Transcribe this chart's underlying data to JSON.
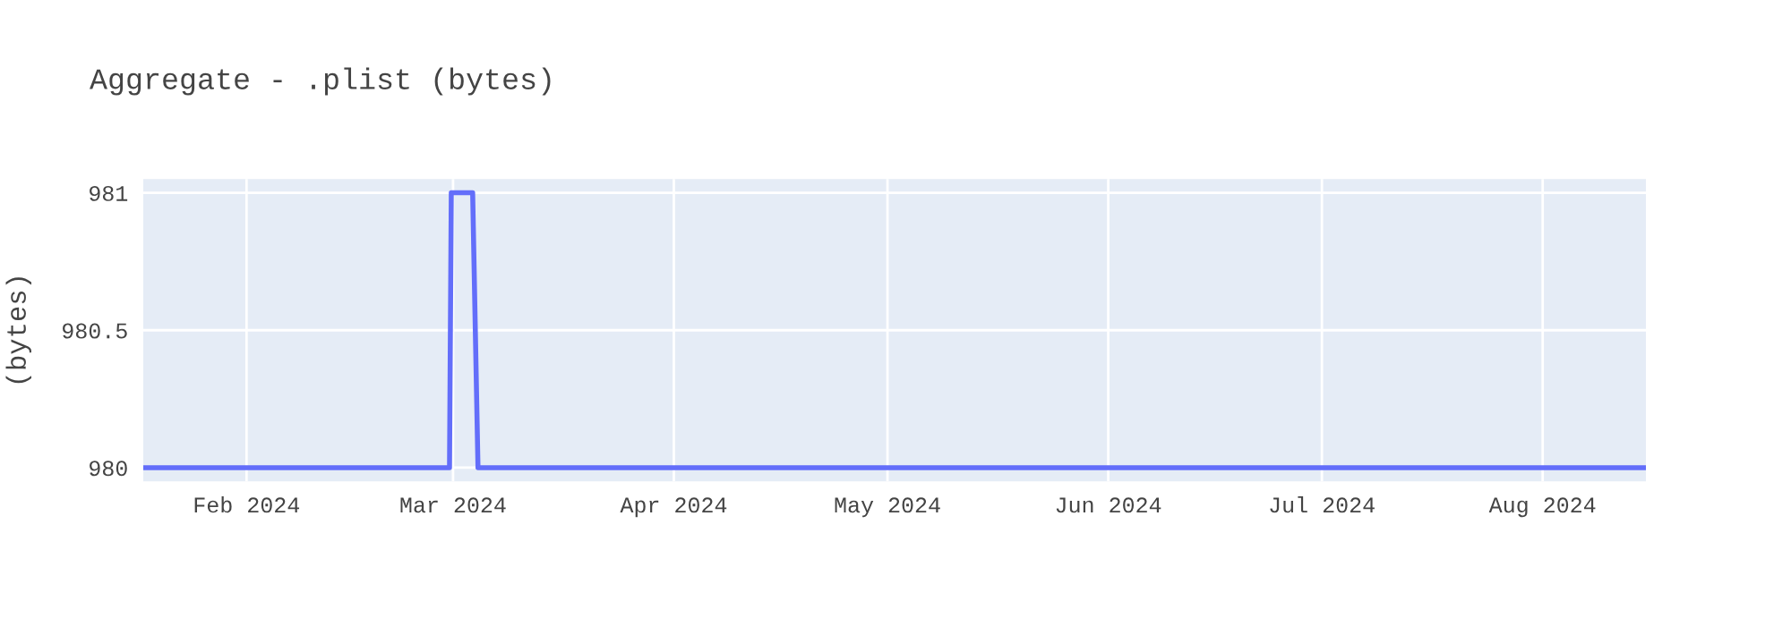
{
  "chart_data": {
    "type": "line",
    "title": "Aggregate - .plist (bytes)",
    "ylabel": "(bytes)",
    "x": [
      "2024-01-17T12:00",
      "2024-02-29T12:00",
      "2024-02-29T18:00",
      "2024-03-03T18:00",
      "2024-03-04T12:00",
      "2024-08-15T12:00"
    ],
    "series": [
      {
        "color": "#636efa",
        "values": [
          980,
          980,
          981,
          981,
          980,
          980
        ]
      }
    ],
    "xlim": [
      "2024-01-17T12:00",
      "2024-08-15T12:00"
    ],
    "xticks": [
      {
        "value": "2024-02-01",
        "label": "Feb 2024"
      },
      {
        "value": "2024-03-01",
        "label": "Mar 2024"
      },
      {
        "value": "2024-04-01",
        "label": "Apr 2024"
      },
      {
        "value": "2024-05-01",
        "label": "May 2024"
      },
      {
        "value": "2024-06-01",
        "label": "Jun 2024"
      },
      {
        "value": "2024-07-01",
        "label": "Jul 2024"
      },
      {
        "value": "2024-08-01",
        "label": "Aug 2024"
      }
    ],
    "ylim": [
      979.95,
      981.05
    ],
    "yticks": [
      980,
      980.5,
      981
    ],
    "grid": true,
    "marker": "none",
    "line_style": "solid"
  }
}
